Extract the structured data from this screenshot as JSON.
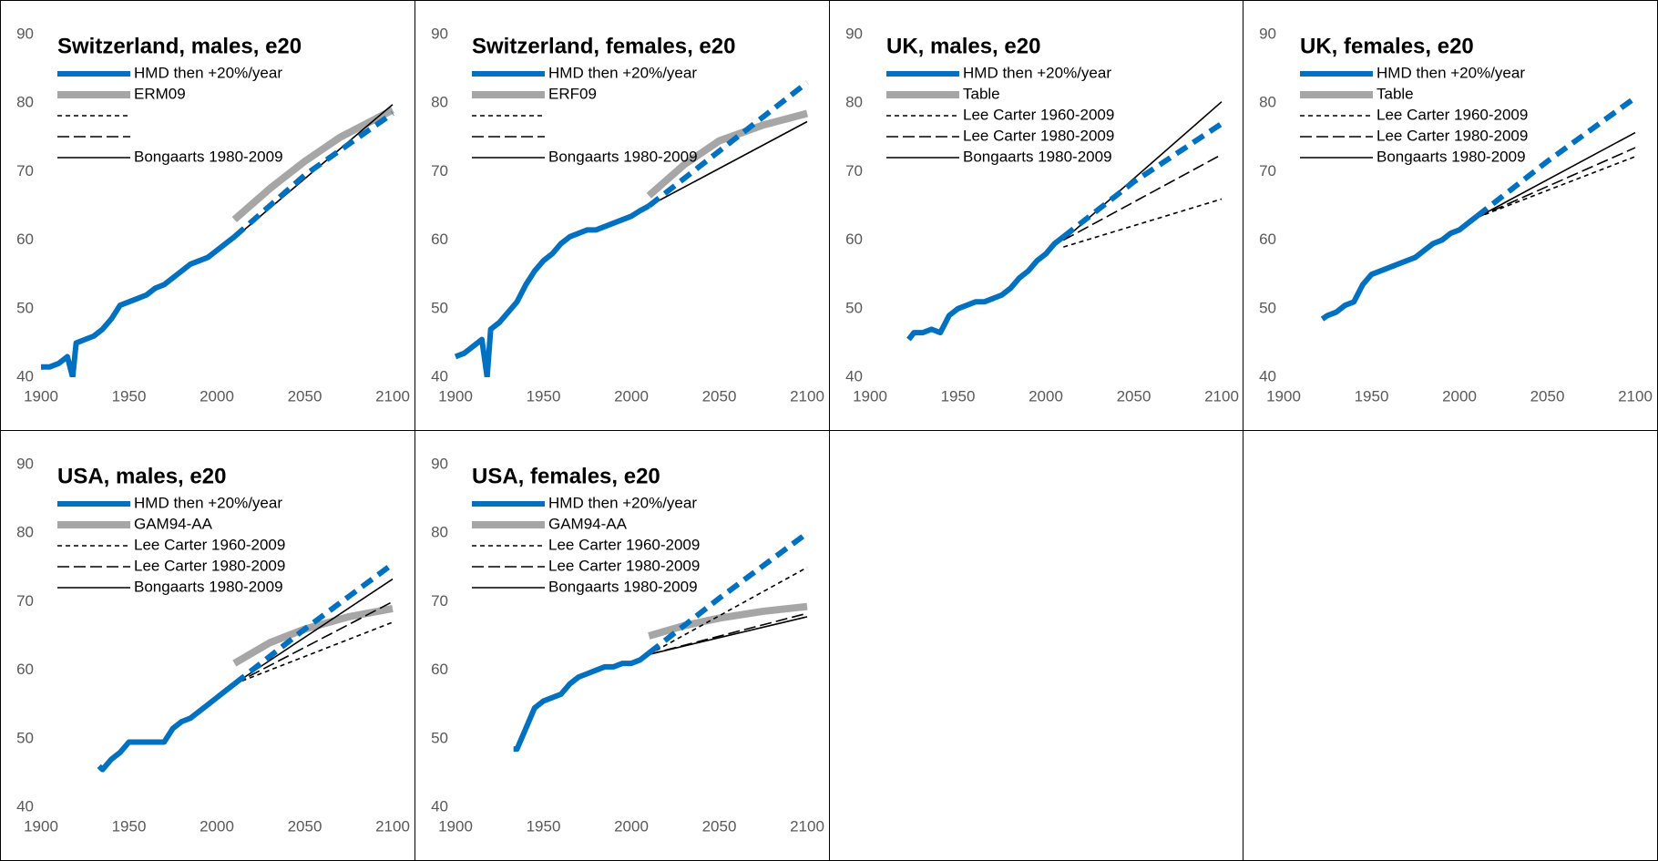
{
  "chart_data": [
    {
      "type": "line",
      "title": "Switzerland, males, e20",
      "xlim": [
        1900,
        2100
      ],
      "xticks": [
        1900,
        1950,
        2000,
        2050,
        2100
      ],
      "ylim": [
        40,
        90
      ],
      "yticks": [
        40,
        50,
        60,
        70,
        80,
        90
      ],
      "series": [
        {
          "name": "HMD then +20%/year",
          "color": "#0070c0",
          "dash": "solid",
          "dash_from_x": 2010,
          "x": [
            1900,
            1905,
            1910,
            1915,
            1918,
            1920,
            1925,
            1930,
            1935,
            1940,
            1945,
            1950,
            1955,
            1960,
            1965,
            1970,
            1975,
            1980,
            1985,
            1990,
            1995,
            2000,
            2005,
            2010,
            2050,
            2100
          ],
          "values": [
            41.5,
            41.5,
            42,
            43,
            40,
            45,
            45.5,
            46,
            47,
            48.5,
            50.5,
            51,
            51.5,
            52,
            53,
            53.5,
            54.5,
            55.5,
            56.5,
            57,
            57.5,
            58.5,
            59.5,
            60.5,
            69.5,
            78.5
          ]
        },
        {
          "name": "ERM09",
          "color": "#a6a6a6",
          "dash": "solid",
          "x": [
            2010,
            2030,
            2050,
            2070,
            2100
          ],
          "values": [
            63,
            67.5,
            71.5,
            75,
            79
          ]
        },
        {
          "name": null,
          "color": "#000000",
          "dash": "short",
          "x": [],
          "values": []
        },
        {
          "name": null,
          "color": "#000000",
          "dash": "long",
          "x": [],
          "values": []
        },
        {
          "name": "Bongaarts 1980-2009",
          "color": "#000000",
          "dash": "solid",
          "x": [
            2010,
            2100
          ],
          "values": [
            60.3,
            79.8
          ]
        }
      ]
    },
    {
      "type": "line",
      "title": "Switzerland, females, e20",
      "xlim": [
        1900,
        2100
      ],
      "xticks": [
        1900,
        1950,
        2000,
        2050,
        2100
      ],
      "ylim": [
        40,
        90
      ],
      "yticks": [
        40,
        50,
        60,
        70,
        80,
        90
      ],
      "series": [
        {
          "name": "HMD then +20%/year",
          "color": "#0070c0",
          "dash": "solid",
          "dash_from_x": 2010,
          "x": [
            1900,
            1905,
            1910,
            1915,
            1918,
            1920,
            1925,
            1930,
            1935,
            1940,
            1945,
            1950,
            1955,
            1960,
            1965,
            1970,
            1975,
            1980,
            1985,
            1990,
            1995,
            2000,
            2005,
            2010,
            2050,
            2100
          ],
          "values": [
            43,
            43.5,
            44.5,
            45.5,
            40,
            47,
            48,
            49.5,
            51,
            53.5,
            55.5,
            57,
            58,
            59.5,
            60.5,
            61,
            61.5,
            61.5,
            62,
            62.5,
            63,
            63.5,
            64.3,
            65,
            73,
            83
          ]
        },
        {
          "name": "ERF09",
          "color": "#a6a6a6",
          "dash": "solid",
          "x": [
            2010,
            2030,
            2050,
            2075,
            2100
          ],
          "values": [
            66.5,
            71,
            74.5,
            76.8,
            78.5
          ]
        },
        {
          "name": null,
          "color": "#000000",
          "dash": "short",
          "x": [],
          "values": []
        },
        {
          "name": null,
          "color": "#000000",
          "dash": "long",
          "x": [],
          "values": []
        },
        {
          "name": "Bongaarts 1980-2009",
          "color": "#000000",
          "dash": "solid",
          "x": [
            2010,
            2100
          ],
          "values": [
            65,
            77.3
          ]
        }
      ]
    },
    {
      "type": "line",
      "title": "UK, males, e20",
      "xlim": [
        1900,
        2100
      ],
      "xticks": [
        1900,
        1950,
        2000,
        2050,
        2100
      ],
      "ylim": [
        40,
        90
      ],
      "yticks": [
        40,
        50,
        60,
        70,
        80,
        90
      ],
      "series": [
        {
          "name": "HMD then +20%/year",
          "color": "#0070c0",
          "dash": "solid",
          "dash_from_x": 2010,
          "x": [
            1922,
            1925,
            1930,
            1935,
            1940,
            1945,
            1950,
            1955,
            1960,
            1965,
            1970,
            1975,
            1980,
            1985,
            1990,
            1995,
            2000,
            2005,
            2010,
            2050,
            2100
          ],
          "values": [
            45.5,
            46.5,
            46.5,
            47,
            46.5,
            49,
            50,
            50.5,
            51,
            51,
            51.5,
            52,
            53,
            54.5,
            55.5,
            57,
            58,
            59.5,
            60.5,
            68.5,
            77
          ]
        },
        {
          "name": "Table",
          "color": "#a6a6a6",
          "dash": "solid",
          "x": [],
          "values": []
        },
        {
          "name": "Lee Carter 1960-2009",
          "color": "#000000",
          "dash": "short",
          "x": [
            2010,
            2100
          ],
          "values": [
            59,
            66
          ]
        },
        {
          "name": "Lee Carter 1980-2009",
          "color": "#000000",
          "dash": "long",
          "x": [
            2010,
            2100
          ],
          "values": [
            60,
            72.5
          ]
        },
        {
          "name": "Bongaarts 1980-2009",
          "color": "#000000",
          "dash": "solid",
          "x": [
            2010,
            2100
          ],
          "values": [
            60,
            80.2
          ]
        }
      ]
    },
    {
      "type": "line",
      "title": "UK, females, e20",
      "xlim": [
        1900,
        2100
      ],
      "xticks": [
        1900,
        1950,
        2000,
        2050,
        2100
      ],
      "ylim": [
        40,
        90
      ],
      "yticks": [
        40,
        50,
        60,
        70,
        80,
        90
      ],
      "series": [
        {
          "name": "HMD then +20%/year",
          "color": "#0070c0",
          "dash": "solid",
          "dash_from_x": 2010,
          "x": [
            1922,
            1925,
            1930,
            1935,
            1940,
            1945,
            1950,
            1955,
            1960,
            1965,
            1970,
            1975,
            1980,
            1985,
            1990,
            1995,
            2000,
            2005,
            2010,
            2050,
            2100
          ],
          "values": [
            48.5,
            49,
            49.5,
            50.5,
            51,
            53.5,
            55,
            55.5,
            56,
            56.5,
            57,
            57.5,
            58.5,
            59.5,
            60,
            61,
            61.5,
            62.5,
            63.5,
            71.5,
            80.8
          ]
        },
        {
          "name": "Table",
          "color": "#a6a6a6",
          "dash": "solid",
          "x": [],
          "values": []
        },
        {
          "name": "Lee Carter 1960-2009",
          "color": "#000000",
          "dash": "short",
          "x": [
            2010,
            2100
          ],
          "values": [
            63.3,
            72.2
          ]
        },
        {
          "name": "Lee Carter 1980-2009",
          "color": "#000000",
          "dash": "long",
          "x": [
            2010,
            2100
          ],
          "values": [
            63.3,
            73.5
          ]
        },
        {
          "name": "Bongaarts 1980-2009",
          "color": "#000000",
          "dash": "solid",
          "x": [
            2010,
            2100
          ],
          "values": [
            63.3,
            75.7
          ]
        }
      ]
    },
    {
      "type": "line",
      "title": "USA, males, e20",
      "xlim": [
        1900,
        2100
      ],
      "xticks": [
        1900,
        1950,
        2000,
        2050,
        2100
      ],
      "ylim": [
        40,
        90
      ],
      "yticks": [
        40,
        50,
        60,
        70,
        80,
        90
      ],
      "series": [
        {
          "name": "HMD then +20%/year",
          "color": "#0070c0",
          "dash": "solid",
          "dash_from_x": 2010,
          "x": [
            1933,
            1935,
            1940,
            1945,
            1950,
            1955,
            1960,
            1965,
            1970,
            1975,
            1980,
            1985,
            1990,
            1995,
            2000,
            2005,
            2010,
            2050,
            2100
          ],
          "values": [
            46,
            45.5,
            47,
            48,
            49.5,
            49.5,
            49.5,
            49.5,
            49.5,
            51.5,
            52.5,
            53,
            54,
            55,
            56,
            57,
            58,
            66,
            75.5
          ]
        },
        {
          "name": "GAM94-AA",
          "color": "#a6a6a6",
          "dash": "solid",
          "x": [
            2010,
            2030,
            2050,
            2075,
            2100
          ],
          "values": [
            61,
            64,
            66,
            67.8,
            69
          ]
        },
        {
          "name": "Lee Carter 1960-2009",
          "color": "#000000",
          "dash": "short",
          "x": [
            2010,
            2100
          ],
          "values": [
            58,
            67
          ]
        },
        {
          "name": "Lee Carter 1980-2009",
          "color": "#000000",
          "dash": "long",
          "x": [
            2010,
            2100
          ],
          "values": [
            58,
            70
          ]
        },
        {
          "name": "Bongaarts 1980-2009",
          "color": "#000000",
          "dash": "solid",
          "x": [
            2010,
            2100
          ],
          "values": [
            58,
            73.3
          ]
        }
      ]
    },
    {
      "type": "line",
      "title": "USA, females, e20",
      "xlim": [
        1900,
        2100
      ],
      "xticks": [
        1900,
        1950,
        2000,
        2050,
        2100
      ],
      "ylim": [
        40,
        90
      ],
      "yticks": [
        40,
        50,
        60,
        70,
        80,
        90
      ],
      "series": [
        {
          "name": "HMD then +20%/year",
          "color": "#0070c0",
          "dash": "solid",
          "dash_from_x": 2010,
          "x": [
            1933,
            1935,
            1940,
            1945,
            1950,
            1955,
            1960,
            1965,
            1970,
            1975,
            1980,
            1985,
            1990,
            1995,
            2000,
            2005,
            2010,
            2050,
            2100
          ],
          "values": [
            48.5,
            48.5,
            51.5,
            54.5,
            55.5,
            56,
            56.5,
            58,
            59,
            59.5,
            60,
            60.5,
            60.5,
            61,
            61,
            61.5,
            62.5,
            70.5,
            80
          ]
        },
        {
          "name": "GAM94-AA",
          "color": "#a6a6a6",
          "dash": "solid",
          "x": [
            2010,
            2030,
            2050,
            2075,
            2100
          ],
          "values": [
            65,
            66.5,
            67.6,
            68.6,
            69.3
          ]
        },
        {
          "name": "Lee Carter 1960-2009",
          "color": "#000000",
          "dash": "short",
          "x": [
            2010,
            2100
          ],
          "values": [
            62.3,
            75
          ]
        },
        {
          "name": "Lee Carter 1980-2009",
          "color": "#000000",
          "dash": "long",
          "x": [
            2010,
            2100
          ],
          "values": [
            62.3,
            68.3
          ]
        },
        {
          "name": "Bongaarts 1980-2009",
          "color": "#000000",
          "dash": "solid",
          "x": [
            2010,
            2100
          ],
          "values": [
            62.3,
            67.8
          ]
        }
      ]
    }
  ]
}
